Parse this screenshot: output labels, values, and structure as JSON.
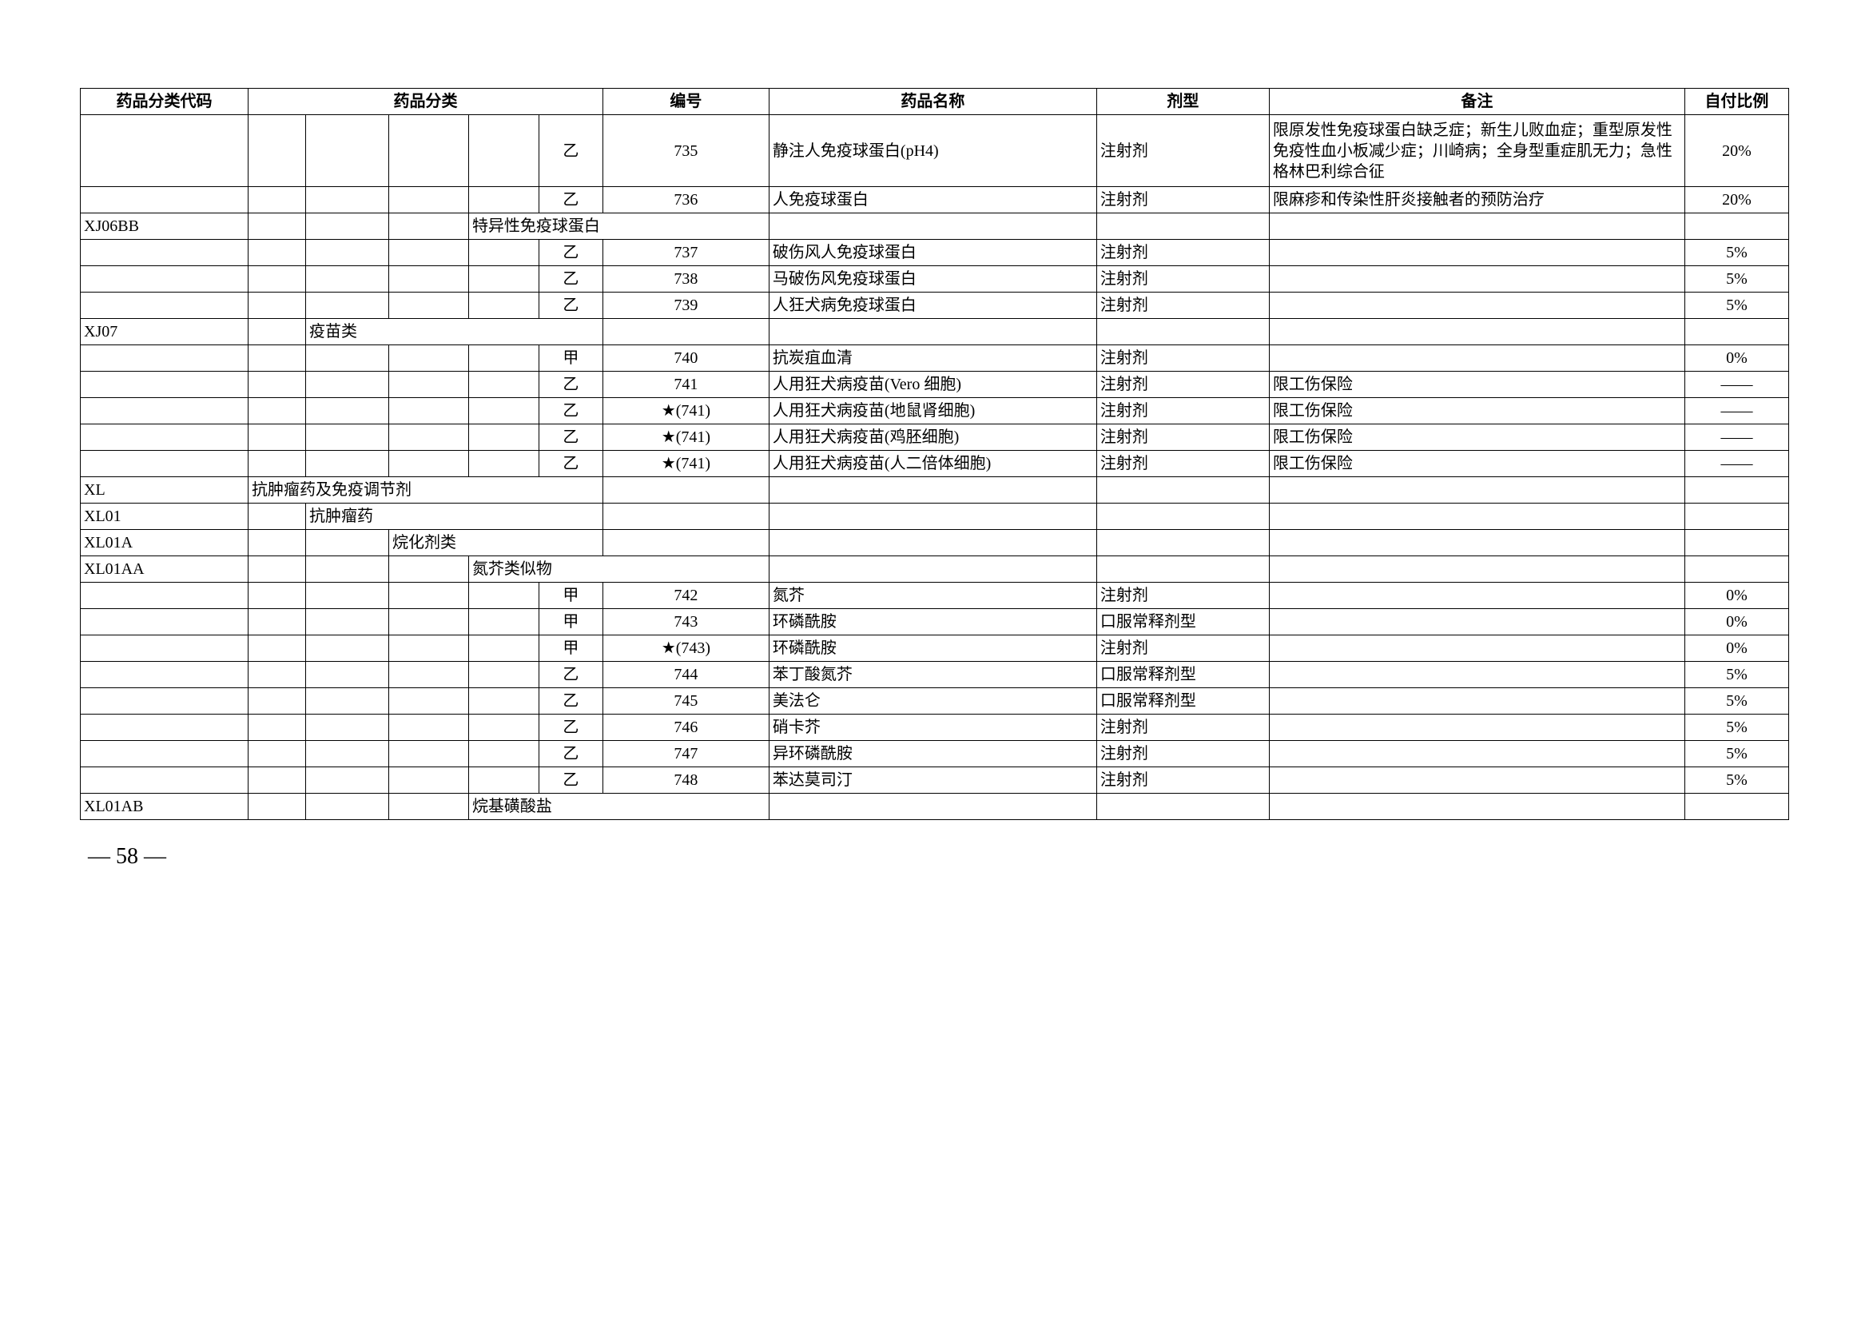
{
  "headers": {
    "code": "药品分类代码",
    "category": "药品分类",
    "number": "编号",
    "name": "药品名称",
    "form": "剂型",
    "note": "备注",
    "ratio": "自付比例"
  },
  "rows": [
    {
      "type": "data",
      "cat5": "乙",
      "num": "735",
      "name": "静注人免疫球蛋白(pH4)",
      "form": "注射剂",
      "note": "限原发性免疫球蛋白缺乏症；新生儿败血症；重型原发性免疫性血小板减少症；川崎病；全身型重症肌无力；急性格林巴利综合征",
      "ratio": "20%",
      "tall": true
    },
    {
      "type": "data",
      "cat5": "乙",
      "num": "736",
      "name": "人免疫球蛋白",
      "form": "注射剂",
      "note": "限麻疹和传染性肝炎接触者的预防治疗",
      "ratio": "20%"
    },
    {
      "type": "cat",
      "code": "XJ06BB",
      "cat4": "特异性免疫球蛋白",
      "cat4_span": 3
    },
    {
      "type": "data",
      "cat5": "乙",
      "num": "737",
      "name": "破伤风人免疫球蛋白",
      "form": "注射剂",
      "note": "",
      "ratio": "5%"
    },
    {
      "type": "data",
      "cat5": "乙",
      "num": "738",
      "name": "马破伤风免疫球蛋白",
      "form": "注射剂",
      "note": "",
      "ratio": "5%"
    },
    {
      "type": "data",
      "cat5": "乙",
      "num": "739",
      "name": "人狂犬病免疫球蛋白",
      "form": "注射剂",
      "note": "",
      "ratio": "5%"
    },
    {
      "type": "cat",
      "code": "XJ07",
      "cat2": "疫苗类",
      "cat2_span": 4
    },
    {
      "type": "data",
      "cat5": "甲",
      "num": "740",
      "name": "抗炭疽血清",
      "form": "注射剂",
      "note": "",
      "ratio": "0%"
    },
    {
      "type": "data",
      "cat5": "乙",
      "num": "741",
      "name": "人用狂犬病疫苗(Vero 细胞)",
      "form": "注射剂",
      "note": "限工伤保险",
      "ratio": "——"
    },
    {
      "type": "data",
      "cat5": "乙",
      "num": "★(741)",
      "name": "人用狂犬病疫苗(地鼠肾细胞)",
      "form": "注射剂",
      "note": "限工伤保险",
      "ratio": "——"
    },
    {
      "type": "data",
      "cat5": "乙",
      "num": "★(741)",
      "name": "人用狂犬病疫苗(鸡胚细胞)",
      "form": "注射剂",
      "note": "限工伤保险",
      "ratio": "——"
    },
    {
      "type": "data",
      "cat5": "乙",
      "num": "★(741)",
      "name": "人用狂犬病疫苗(人二倍体细胞)",
      "form": "注射剂",
      "note": "限工伤保险",
      "ratio": "——"
    },
    {
      "type": "cat",
      "code": "XL",
      "cat1": "抗肿瘤药及免疫调节剂",
      "cat1_span": 5
    },
    {
      "type": "cat",
      "code": "XL01",
      "cat2": "抗肿瘤药",
      "cat2_span": 4
    },
    {
      "type": "cat",
      "code": "XL01A",
      "cat3": "烷化剂类",
      "cat3_span": 3
    },
    {
      "type": "cat",
      "code": "XL01AA",
      "cat4": "氮芥类似物",
      "cat4_span": 3
    },
    {
      "type": "data",
      "cat5": "甲",
      "num": "742",
      "name": "氮芥",
      "form": "注射剂",
      "note": "",
      "ratio": "0%"
    },
    {
      "type": "data",
      "cat5": "甲",
      "num": "743",
      "name": "环磷酰胺",
      "form": "口服常释剂型",
      "note": "",
      "ratio": "0%"
    },
    {
      "type": "data",
      "cat5": "甲",
      "num": "★(743)",
      "name": "环磷酰胺",
      "form": "注射剂",
      "note": "",
      "ratio": "0%"
    },
    {
      "type": "data",
      "cat5": "乙",
      "num": "744",
      "name": "苯丁酸氮芥",
      "form": "口服常释剂型",
      "note": "",
      "ratio": "5%"
    },
    {
      "type": "data",
      "cat5": "乙",
      "num": "745",
      "name": "美法仑",
      "form": "口服常释剂型",
      "note": "",
      "ratio": "5%"
    },
    {
      "type": "data",
      "cat5": "乙",
      "num": "746",
      "name": "硝卡芥",
      "form": "注射剂",
      "note": "",
      "ratio": "5%"
    },
    {
      "type": "data",
      "cat5": "乙",
      "num": "747",
      "name": "异环磷酰胺",
      "form": "注射剂",
      "note": "",
      "ratio": "5%"
    },
    {
      "type": "data",
      "cat5": "乙",
      "num": "748",
      "name": "苯达莫司汀",
      "form": "注射剂",
      "note": "",
      "ratio": "5%"
    },
    {
      "type": "cat",
      "code": "XL01AB",
      "cat4": "烷基磺酸盐",
      "cat4_span": 3
    }
  ],
  "page_number": "— 58 —"
}
